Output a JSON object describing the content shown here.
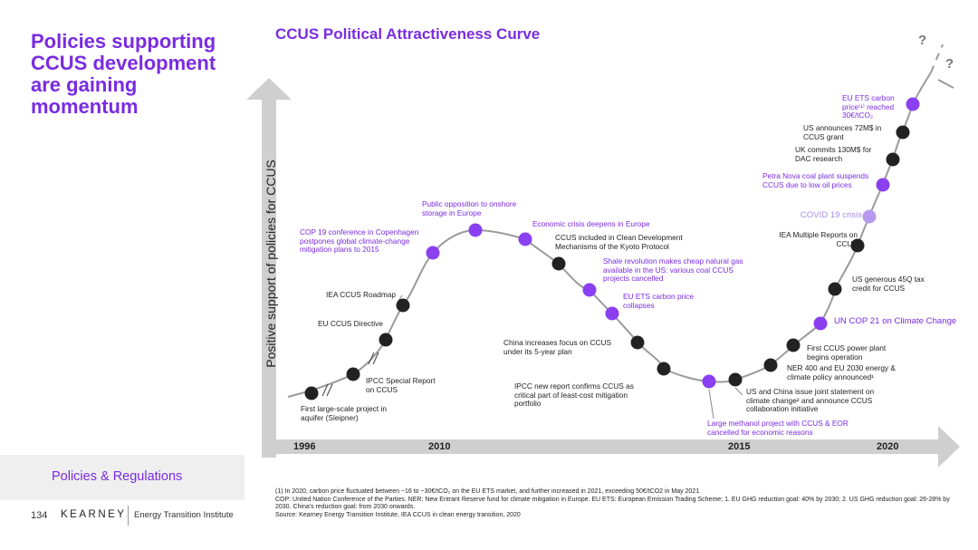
{
  "sidebar": {
    "title": "Policies supporting CCUS development are gaining momentum",
    "section": "Policies & Regulations",
    "page_number": "134",
    "logo": "KEARNEY",
    "logo_sub": "Energy Transition Institute"
  },
  "chart": {
    "title": "CCUS Political Attractiveness Curve",
    "y_axis_label": "Positive support of policies for CCUS",
    "years": [
      "1996",
      "2010",
      "2015",
      "2020"
    ],
    "question_marks": [
      "?",
      "?"
    ],
    "colors": {
      "accent": "#7A2BE2",
      "event_dark": "#222222",
      "event_purple": "#8a3ff0",
      "event_light": "#b69af0",
      "curve": "#9a9a9a",
      "axis_arrow": "#cfcfcf"
    },
    "events": [
      {
        "id": "first-large-scale",
        "color": "dark",
        "label": "First large-scale project in aquifer (Sleipner)"
      },
      {
        "id": "ipcc-special",
        "color": "dark",
        "label": "IPCC Special Report on CCUS"
      },
      {
        "id": "eu-ccus-directive",
        "color": "dark",
        "label": "EU CCUS Directive"
      },
      {
        "id": "iea-roadmap",
        "color": "dark",
        "label": "IEA CCUS Roadmap"
      },
      {
        "id": "cop19",
        "color": "purple",
        "label": "COP 19 conference in Copenhagen postpones global climate-change mitigation plans to 2015"
      },
      {
        "id": "public-opposition",
        "color": "purple",
        "label": "Public opposition to onshore storage in Europe"
      },
      {
        "id": "economic-crisis",
        "color": "purple",
        "label": "Economic crisis deepens in Europe"
      },
      {
        "id": "cdm",
        "color": "dark",
        "label": "CCUS included in Clean Development Mechanisms of the Kyoto Protocol"
      },
      {
        "id": "shale",
        "color": "purple",
        "label": "Shale revolution makes cheap natural gas available in the US: various coal CCUS projects cancelled"
      },
      {
        "id": "eu-ets-collapse",
        "color": "purple",
        "label": "EU ETS carbon price collapses"
      },
      {
        "id": "china-5yr",
        "color": "dark",
        "label": "China increases focus on CCUS under its 5-year plan"
      },
      {
        "id": "ipcc-new",
        "color": "dark",
        "label": "IPCC new report confirms CCUS as critical part of least-cost mitigation portfolio"
      },
      {
        "id": "methanol",
        "color": "purple",
        "label": "Large methanol project with CCUS & EOR cancelled for economic reasons"
      },
      {
        "id": "us-china",
        "color": "dark",
        "label": "US and China issue joint statement on climate change² and announce CCUS collaboration initiative"
      },
      {
        "id": "ner400",
        "color": "dark",
        "label": "NER 400 and EU 2030 energy & climate policy announced¹"
      },
      {
        "id": "first-power-plant",
        "color": "dark",
        "label": "First CCUS power plant begins operation"
      },
      {
        "id": "cop21",
        "color": "purple",
        "label": "UN COP 21 on Climate Change"
      },
      {
        "id": "45q",
        "color": "dark",
        "label": "US generous 45Q tax  credit for CCUS"
      },
      {
        "id": "iea-multiple",
        "color": "dark",
        "label": "IEA Multiple Reports on CCUS"
      },
      {
        "id": "covid",
        "color": "light",
        "label": "COVID 19 crisis"
      },
      {
        "id": "petra-nova",
        "color": "purple",
        "label": "Petra Nova coal plant suspends CCUS due to low oil prices"
      },
      {
        "id": "uk-130",
        "color": "dark",
        "label": "UK commits 130M$ for DAC research"
      },
      {
        "id": "us-72",
        "color": "dark",
        "label": "US announces 72M$ in CCUS grant"
      },
      {
        "id": "eu-ets-30",
        "color": "purple",
        "label": "EU ETS carbon price⁽¹⁾ reached 30€/tCO₂"
      }
    ]
  },
  "footnotes": [
    "(1) In 2020, carbon price fluctuated between ~16 to ~30€/tCO₂ on the EU ETS market, and further increased in 2021, exceeding 50€/tCO2 in May 2021",
    "COP: United Nation Conference of the Parties. NER: New Entrant Reserve fund for climate mitigation in Europe. EU ETS: European Emission Trading Scheme; 1.  EU GHG reduction goal: 40% by 2030; 2.  US GHG reduction goal: 26-28% by 2030. China's reduction goal: from 2030 onwards.",
    "Source: Kearney Energy Transition Institute, IEA CCUS in clean energy transition, 2020"
  ]
}
